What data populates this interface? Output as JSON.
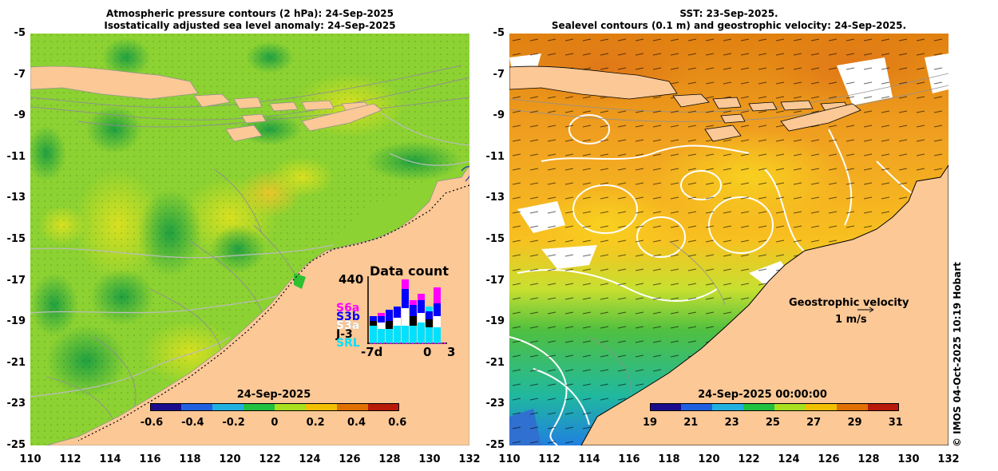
{
  "left_panel": {
    "title_line1": "Atmospheric pressure contours (2 hPa): 24-Sep-2025",
    "title_line2": "Isostatically adjusted sea level anomaly: 24-Sep-2025",
    "colorbar_title": "24-Sep-2025",
    "colorbar_ticks": [
      "-0.6",
      "-0.4",
      "-0.2",
      "0",
      "0.2",
      "0.4",
      "0.6"
    ],
    "colorbar_colors": [
      "#1a0c8c",
      "#2060e0",
      "#20b0e0",
      "#20c040",
      "#a8e020",
      "#f0c000",
      "#e07000",
      "#b81a0a"
    ]
  },
  "right_panel": {
    "title_line1": "SST: 23-Sep-2025.",
    "title_line2": "Sealevel contours (0.1 m) and geostrophic velocity: 24-Sep-2025.",
    "colorbar_title": "24-Sep-2025 00:00:00",
    "colorbar_ticks": [
      "19",
      "21",
      "23",
      "25",
      "27",
      "29",
      "31"
    ],
    "colorbar_colors": [
      "#1a0c8c",
      "#2060e0",
      "#20b0e0",
      "#20c040",
      "#a8e020",
      "#f0c000",
      "#e07000",
      "#b81a0a"
    ],
    "legend_title": "Geostrophic velocity",
    "legend_scale": "1 m/s"
  },
  "y_ticks": [
    "-5",
    "-7",
    "-9",
    "-11",
    "-13",
    "-15",
    "-17",
    "-19",
    "-21",
    "-23",
    "-25"
  ],
  "x_ticks": [
    "110",
    "112",
    "114",
    "116",
    "118",
    "120",
    "122",
    "124",
    "126",
    "128",
    "130",
    "132"
  ],
  "data_count_inset": {
    "title": "Data count",
    "max_label": "440",
    "x_label_left": "-7d",
    "x_label_mid": "0",
    "x_label_right": "3",
    "missions": [
      {
        "name": "S6a",
        "color": "#ff00ff"
      },
      {
        "name": "S3b",
        "color": "#0000ff"
      },
      {
        "name": "S3a",
        "color": "#ffffff"
      },
      {
        "name": "J-3",
        "color": "#000000"
      },
      {
        "name": "SRL",
        "color": "#00e0ff"
      }
    ]
  },
  "copyright": "© IMOS 04-Oct-2025 10:19 Hobart",
  "colors": {
    "land": "#fbc896",
    "ocean_left": "#8cd232",
    "ocean_right_warm": "#f0a020",
    "ocean_right_cool": "#30c060"
  }
}
